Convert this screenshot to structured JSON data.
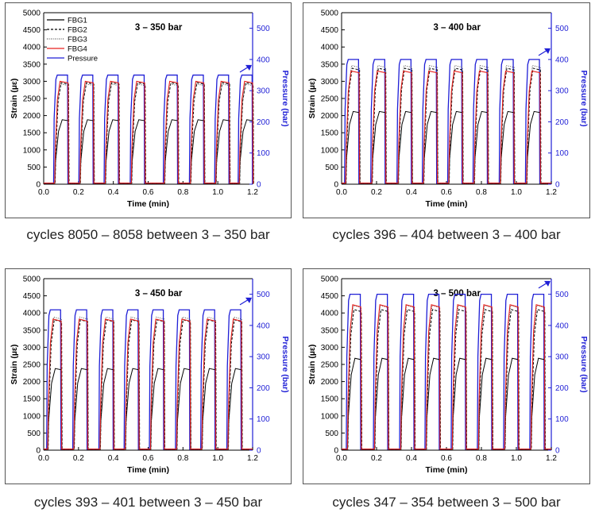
{
  "colors": {
    "fbg1": "#000000",
    "fbg2": "#000000",
    "fbg3": "#555555",
    "fbg4": "#e8211d",
    "pressure": "#1f1fd6",
    "pressure_axis": "#1f1fd6"
  },
  "chart_data": [
    {
      "type": "line",
      "title": "3 – 350 bar",
      "caption": "cycles 8050 – 8058 between 3 – 350 bar",
      "xlabel": "Time (min)",
      "ylabel": "Strain (µε)",
      "y2label": "Pressure (bar)",
      "xlim": [
        0.0,
        1.2
      ],
      "ylim": [
        0,
        5000
      ],
      "y2lim": [
        0,
        550
      ],
      "xticks": [
        "0.0",
        "0.2",
        "0.4",
        "0.6",
        "0.8",
        "1.0",
        "1.2"
      ],
      "yticks": [
        "0",
        "500",
        "1000",
        "1500",
        "2000",
        "2500",
        "3000",
        "3500",
        "4000",
        "4500",
        "5000"
      ],
      "y2ticks": [
        "0",
        "100",
        "200",
        "300",
        "400",
        "500"
      ],
      "legend": {
        "placement": "top-left",
        "entries": [
          {
            "name": "FBG1",
            "style": "solid",
            "color_key": "fbg1"
          },
          {
            "name": "FBG2",
            "style": "dashed",
            "color_key": "fbg2"
          },
          {
            "name": "FBG3",
            "style": "dotted",
            "color_key": "fbg3"
          },
          {
            "name": "FBG4",
            "style": "solid",
            "color_key": "fbg4"
          },
          {
            "name": "Pressure",
            "style": "solid",
            "color_key": "pressure"
          }
        ]
      },
      "cycle_starts": [
        0.06,
        0.205,
        0.35,
        0.5,
        0.69,
        0.84,
        0.985,
        1.12
      ],
      "cycle_high_duration": 0.077,
      "pressure_max": 350,
      "pressure_min": 3,
      "series": [
        {
          "name": "FBG1",
          "plateau_strain": 1880
        },
        {
          "name": "FBG2",
          "plateau_strain": 2960
        },
        {
          "name": "FBG3",
          "plateau_strain": 2920
        },
        {
          "name": "FBG4",
          "plateau_strain": 3000
        },
        {
          "name": "Pressure",
          "plateau_pressure": 350
        }
      ]
    },
    {
      "type": "line",
      "title": "3 – 400 bar",
      "caption": "cycles 396 – 404 between 3 – 400 bar",
      "xlabel": "Time (min)",
      "ylabel": "Strain (µε)",
      "y2label": "Pressure (bar)",
      "xlim": [
        0.0,
        1.2
      ],
      "ylim": [
        0,
        5000
      ],
      "y2lim": [
        0,
        550
      ],
      "xticks": [
        "0.0",
        "0.2",
        "0.4",
        "0.6",
        "0.8",
        "1.0",
        "1.2"
      ],
      "yticks": [
        "0",
        "500",
        "1000",
        "1500",
        "2000",
        "2500",
        "3000",
        "3500",
        "4000",
        "4500",
        "5000"
      ],
      "y2ticks": [
        "0",
        "100",
        "200",
        "300",
        "400",
        "500"
      ],
      "legend": null,
      "cycle_starts": [
        0.02,
        0.17,
        0.32,
        0.465,
        0.61,
        0.755,
        0.905,
        1.055
      ],
      "cycle_high_duration": 0.077,
      "pressure_max": 400,
      "pressure_min": 3,
      "series": [
        {
          "name": "FBG1",
          "plateau_strain": 2120
        },
        {
          "name": "FBG2",
          "plateau_strain": 3380
        },
        {
          "name": "FBG3",
          "plateau_strain": 3460
        },
        {
          "name": "FBG4",
          "plateau_strain": 3300
        },
        {
          "name": "Pressure",
          "plateau_pressure": 400
        }
      ]
    },
    {
      "type": "line",
      "title": "3 – 450 bar",
      "caption": "cycles 393 – 401 between 3 – 450 bar",
      "xlabel": "Time (min)",
      "ylabel": "Strain (µε)",
      "y2label": "Pressure (bar)",
      "xlim": [
        0.0,
        1.2
      ],
      "ylim": [
        0,
        5000
      ],
      "y2lim": [
        0,
        550
      ],
      "xticks": [
        "0.0",
        "0.2",
        "0.4",
        "0.6",
        "0.8",
        "1.0",
        "1.2"
      ],
      "yticks": [
        "0",
        "500",
        "1000",
        "1500",
        "2000",
        "2500",
        "3000",
        "3500",
        "4000",
        "4500",
        "5000"
      ],
      "y2ticks": [
        "0",
        "100",
        "200",
        "300",
        "400",
        "500"
      ],
      "legend": null,
      "cycle_starts": [
        0.02,
        0.17,
        0.32,
        0.465,
        0.61,
        0.76,
        0.905,
        1.055
      ],
      "cycle_high_duration": 0.077,
      "pressure_max": 450,
      "pressure_min": 3,
      "series": [
        {
          "name": "FBG1",
          "plateau_strain": 2380
        },
        {
          "name": "FBG2",
          "plateau_strain": 3800
        },
        {
          "name": "FBG3",
          "plateau_strain": 3880
        },
        {
          "name": "FBG4",
          "plateau_strain": 3820
        },
        {
          "name": "Pressure",
          "plateau_pressure": 450
        }
      ]
    },
    {
      "type": "line",
      "title": "3 – 500 bar",
      "caption": "cycles 347 – 354 between 3 – 500 bar",
      "xlabel": "Time (min)",
      "ylabel": "Strain (µε)",
      "y2label": "Pressure (bar)",
      "xlim": [
        0.0,
        1.2
      ],
      "ylim": [
        0,
        5000
      ],
      "y2lim": [
        0,
        550
      ],
      "xticks": [
        "0.0",
        "0.2",
        "0.4",
        "0.6",
        "0.8",
        "1.0",
        "1.2"
      ],
      "yticks": [
        "0",
        "500",
        "1000",
        "1500",
        "2000",
        "2500",
        "3000",
        "3500",
        "4000",
        "4500",
        "5000"
      ],
      "y2ticks": [
        "0",
        "100",
        "200",
        "300",
        "400",
        "500"
      ],
      "legend": null,
      "cycle_starts": [
        0.03,
        0.185,
        0.335,
        0.48,
        0.63,
        0.78,
        0.93,
        1.08
      ],
      "cycle_high_duration": 0.077,
      "pressure_max": 500,
      "pressure_min": 3,
      "series": [
        {
          "name": "FBG1",
          "plateau_strain": 2680
        },
        {
          "name": "FBG2",
          "plateau_strain": 4100
        },
        {
          "name": "FBG3",
          "plateau_strain": 4220
        },
        {
          "name": "FBG4",
          "plateau_strain": 4240
        },
        {
          "name": "Pressure",
          "plateau_pressure": 500
        }
      ]
    }
  ]
}
